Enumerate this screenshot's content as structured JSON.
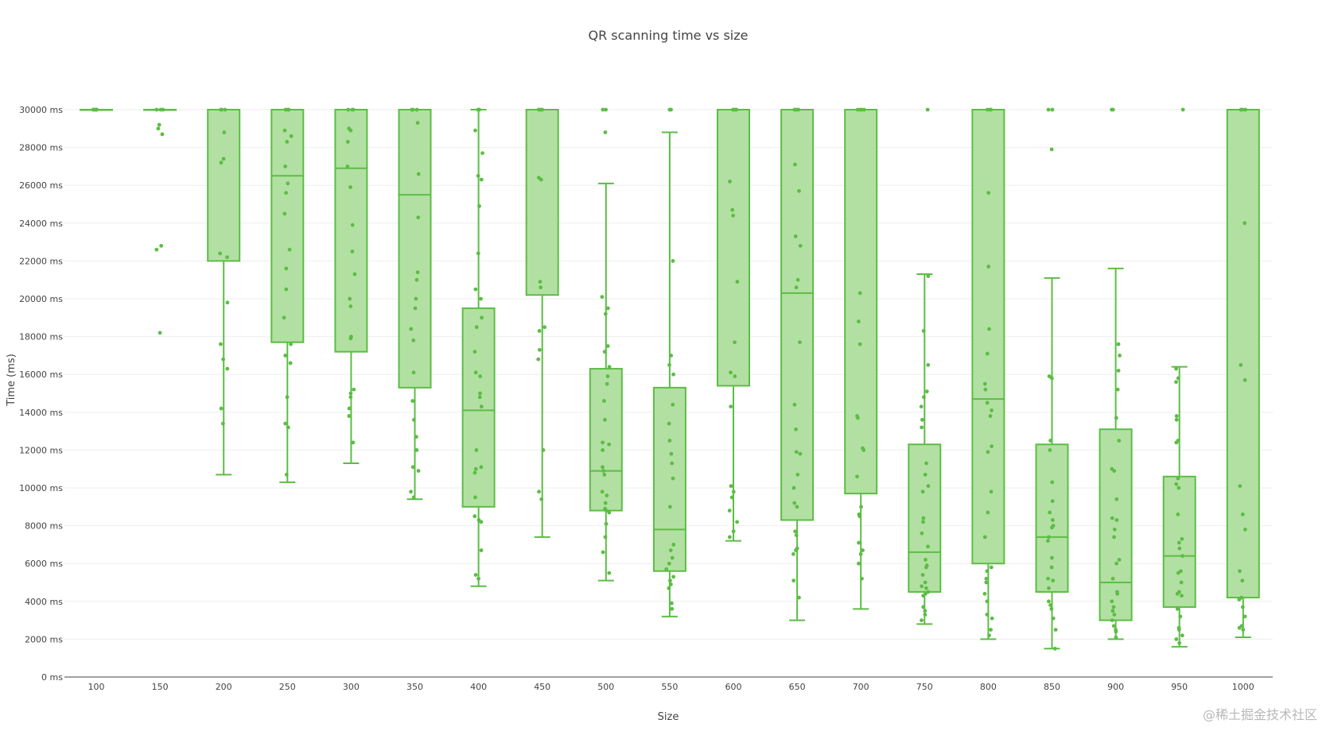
{
  "chart_data": {
    "type": "box",
    "title": "QR scanning time vs size",
    "xlabel": "Size",
    "ylabel": "Time (ms)",
    "ylim": [
      0,
      30000
    ],
    "y_ticks": [
      0,
      2000,
      4000,
      6000,
      8000,
      10000,
      12000,
      14000,
      16000,
      18000,
      20000,
      22000,
      24000,
      26000,
      28000,
      30000
    ],
    "y_tick_labels": [
      "0 ms",
      "2000 ms",
      "4000 ms",
      "6000 ms",
      "8000 ms",
      "10000 ms",
      "12000 ms",
      "14000 ms",
      "16000 ms",
      "18000 ms",
      "20000 ms",
      "22000 ms",
      "24000 ms",
      "26000 ms",
      "28000 ms",
      "30000 ms"
    ],
    "categories": [
      "100",
      "150",
      "200",
      "250",
      "300",
      "350",
      "400",
      "450",
      "500",
      "550",
      "600",
      "650",
      "700",
      "750",
      "800",
      "850",
      "900",
      "950",
      "1000"
    ],
    "grid": "horizontal",
    "legend": "none",
    "color": "#5cbd45",
    "fill_color": "#b2e0a2",
    "boxes": [
      {
        "min": 30000,
        "q1": 30000,
        "median": 30000,
        "q3": 30000,
        "max": 30000
      },
      {
        "min": 30000,
        "q1": 30000,
        "median": 30000,
        "q3": 30000,
        "max": 30000
      },
      {
        "min": 10700,
        "q1": 22000,
        "median": 30000,
        "q3": 30000,
        "max": 30000
      },
      {
        "min": 10300,
        "q1": 17700,
        "median": 26500,
        "q3": 30000,
        "max": 30000
      },
      {
        "min": 11300,
        "q1": 17200,
        "median": 26900,
        "q3": 30000,
        "max": 30000
      },
      {
        "min": 9400,
        "q1": 15300,
        "median": 25500,
        "q3": 30000,
        "max": 30000
      },
      {
        "min": 4800,
        "q1": 9000,
        "median": 14100,
        "q3": 19500,
        "max": 30000
      },
      {
        "min": 7400,
        "q1": 20200,
        "median": 30000,
        "q3": 30000,
        "max": 30000
      },
      {
        "min": 5100,
        "q1": 8800,
        "median": 10900,
        "q3": 16300,
        "max": 26100
      },
      {
        "min": 3200,
        "q1": 5600,
        "median": 7800,
        "q3": 15300,
        "max": 28800
      },
      {
        "min": 7200,
        "q1": 15400,
        "median": 30000,
        "q3": 30000,
        "max": 30000
      },
      {
        "min": 3000,
        "q1": 8300,
        "median": 20300,
        "q3": 30000,
        "max": 30000
      },
      {
        "min": 3600,
        "q1": 9700,
        "median": 30000,
        "q3": 30000,
        "max": 30000
      },
      {
        "min": 2800,
        "q1": 4500,
        "median": 6600,
        "q3": 12300,
        "max": 21300
      },
      {
        "min": 2000,
        "q1": 6000,
        "median": 14700,
        "q3": 30000,
        "max": 30000
      },
      {
        "min": 1500,
        "q1": 4500,
        "median": 7400,
        "q3": 12300,
        "max": 21100
      },
      {
        "min": 2000,
        "q1": 3000,
        "median": 5000,
        "q3": 13100,
        "max": 21600
      },
      {
        "min": 1600,
        "q1": 3700,
        "median": 6400,
        "q3": 10600,
        "max": 16400
      },
      {
        "min": 2100,
        "q1": 4200,
        "median": 30000,
        "q3": 30000,
        "max": 30000
      }
    ],
    "points": [
      [
        30000,
        30000,
        30000,
        30000,
        30000,
        30000
      ],
      [
        30000,
        30000,
        30000,
        29200,
        29000,
        28700,
        22800,
        22600,
        18200
      ],
      [
        30000,
        30000,
        30000,
        28800,
        27400,
        27200,
        22400,
        22200,
        19800,
        17600,
        16800,
        16300,
        14200,
        13400
      ],
      [
        30000,
        30000,
        30000,
        28900,
        28600,
        28300,
        27000,
        26100,
        25600,
        24500,
        22600,
        21600,
        20500,
        19000,
        17600,
        17000,
        16600,
        14800,
        13400,
        13200,
        10700
      ],
      [
        30000,
        30000,
        30000,
        29000,
        28900,
        28300,
        27000,
        25900,
        23900,
        22500,
        21300,
        20000,
        19600,
        18000,
        17900,
        15200,
        15000,
        14800,
        14200,
        13800,
        12400
      ],
      [
        30000,
        30000,
        30000,
        29300,
        26600,
        24300,
        21400,
        21000,
        20000,
        19500,
        18400,
        17800,
        16100,
        14600,
        13600,
        12700,
        12000,
        11100,
        10900,
        9800,
        9500
      ],
      [
        30000,
        30000,
        28900,
        27700,
        26500,
        26300,
        24900,
        22400,
        20500,
        20000,
        19000,
        18500,
        17200,
        16100,
        15900,
        15000,
        14800,
        14300,
        12000,
        11100,
        11000,
        10800,
        9500,
        8500,
        8300,
        8200,
        6700,
        5400,
        5200
      ],
      [
        30000,
        30000,
        30000,
        26400,
        26300,
        20900,
        20600,
        18500,
        18300,
        17300,
        16800,
        12000,
        9800,
        9400
      ],
      [
        30000,
        30000,
        28800,
        20100,
        19500,
        19200,
        17500,
        17200,
        16400,
        15900,
        15500,
        14600,
        13600,
        12400,
        12300,
        12000,
        11100,
        10900,
        10700,
        9800,
        9600,
        9200,
        8900,
        8800,
        8700,
        8100,
        7400,
        6600,
        5500
      ],
      [
        30000,
        30000,
        22000,
        17000,
        16500,
        16000,
        14400,
        13400,
        12500,
        11800,
        11300,
        10500,
        9000,
        7000,
        6700,
        6300,
        6000,
        5700,
        5300,
        5100,
        4900,
        4700,
        3900,
        3600
      ],
      [
        30000,
        30000,
        30000,
        30000,
        26200,
        24700,
        24400,
        20900,
        17700,
        16100,
        15900,
        14300,
        10100,
        9800,
        9500,
        8800,
        8200,
        7700,
        7400
      ],
      [
        30000,
        30000,
        30000,
        27100,
        25700,
        23300,
        22800,
        21000,
        20600,
        17700,
        14400,
        13100,
        11900,
        11800,
        10700,
        10000,
        9200,
        9000,
        7700,
        7500,
        6800,
        6700,
        6500,
        5100,
        4200
      ],
      [
        30000,
        30000,
        30000,
        30000,
        20300,
        18800,
        17600,
        13800,
        13700,
        12100,
        12000,
        10600,
        9000,
        8600,
        8500,
        7100,
        6700,
        6500,
        6000,
        5200
      ],
      [
        30000,
        21200,
        18300,
        16500,
        15100,
        14800,
        14300,
        13600,
        13200,
        11300,
        10700,
        10100,
        9800,
        8400,
        8200,
        7600,
        6900,
        6200,
        5900,
        5800,
        5400,
        5000,
        4800,
        4700,
        4500,
        4400,
        4300,
        3700,
        3500,
        3300,
        3000
      ],
      [
        30000,
        30000,
        30000,
        25600,
        21700,
        18400,
        17100,
        15500,
        15200,
        14500,
        14100,
        13800,
        12200,
        11900,
        9800,
        8700,
        7400,
        5800,
        5600,
        5200,
        5000,
        4400,
        4000,
        3300,
        3100,
        2500,
        2200
      ],
      [
        30000,
        30000,
        27900,
        15900,
        15800,
        12500,
        12000,
        10300,
        9300,
        8700,
        8300,
        8000,
        7900,
        7400,
        7200,
        6300,
        5800,
        5200,
        5100,
        4700,
        4000,
        3800,
        3600,
        3100,
        2500,
        1500
      ],
      [
        30000,
        30000,
        17600,
        17000,
        16200,
        15200,
        13700,
        12500,
        11000,
        10900,
        9400,
        8400,
        8300,
        7800,
        7400,
        6200,
        6000,
        5200,
        4500,
        4400,
        4000,
        3700,
        3500,
        3300,
        3000,
        2700,
        2500,
        2400,
        2100
      ],
      [
        30000,
        16300,
        15800,
        15600,
        13800,
        13600,
        12500,
        12400,
        10500,
        10200,
        10000,
        8600,
        7300,
        7100,
        6800,
        6400,
        5600,
        5500,
        5000,
        4500,
        4400,
        4300,
        3600,
        3200,
        2600,
        2500,
        2200,
        2000,
        1800
      ],
      [
        30000,
        30000,
        30000,
        24000,
        16500,
        15700,
        10100,
        8600,
        7800,
        5600,
        5100,
        4200,
        4100,
        3700,
        3200,
        2700,
        2600,
        2500
      ]
    ]
  },
  "watermark": "@稀土掘金技术社区"
}
